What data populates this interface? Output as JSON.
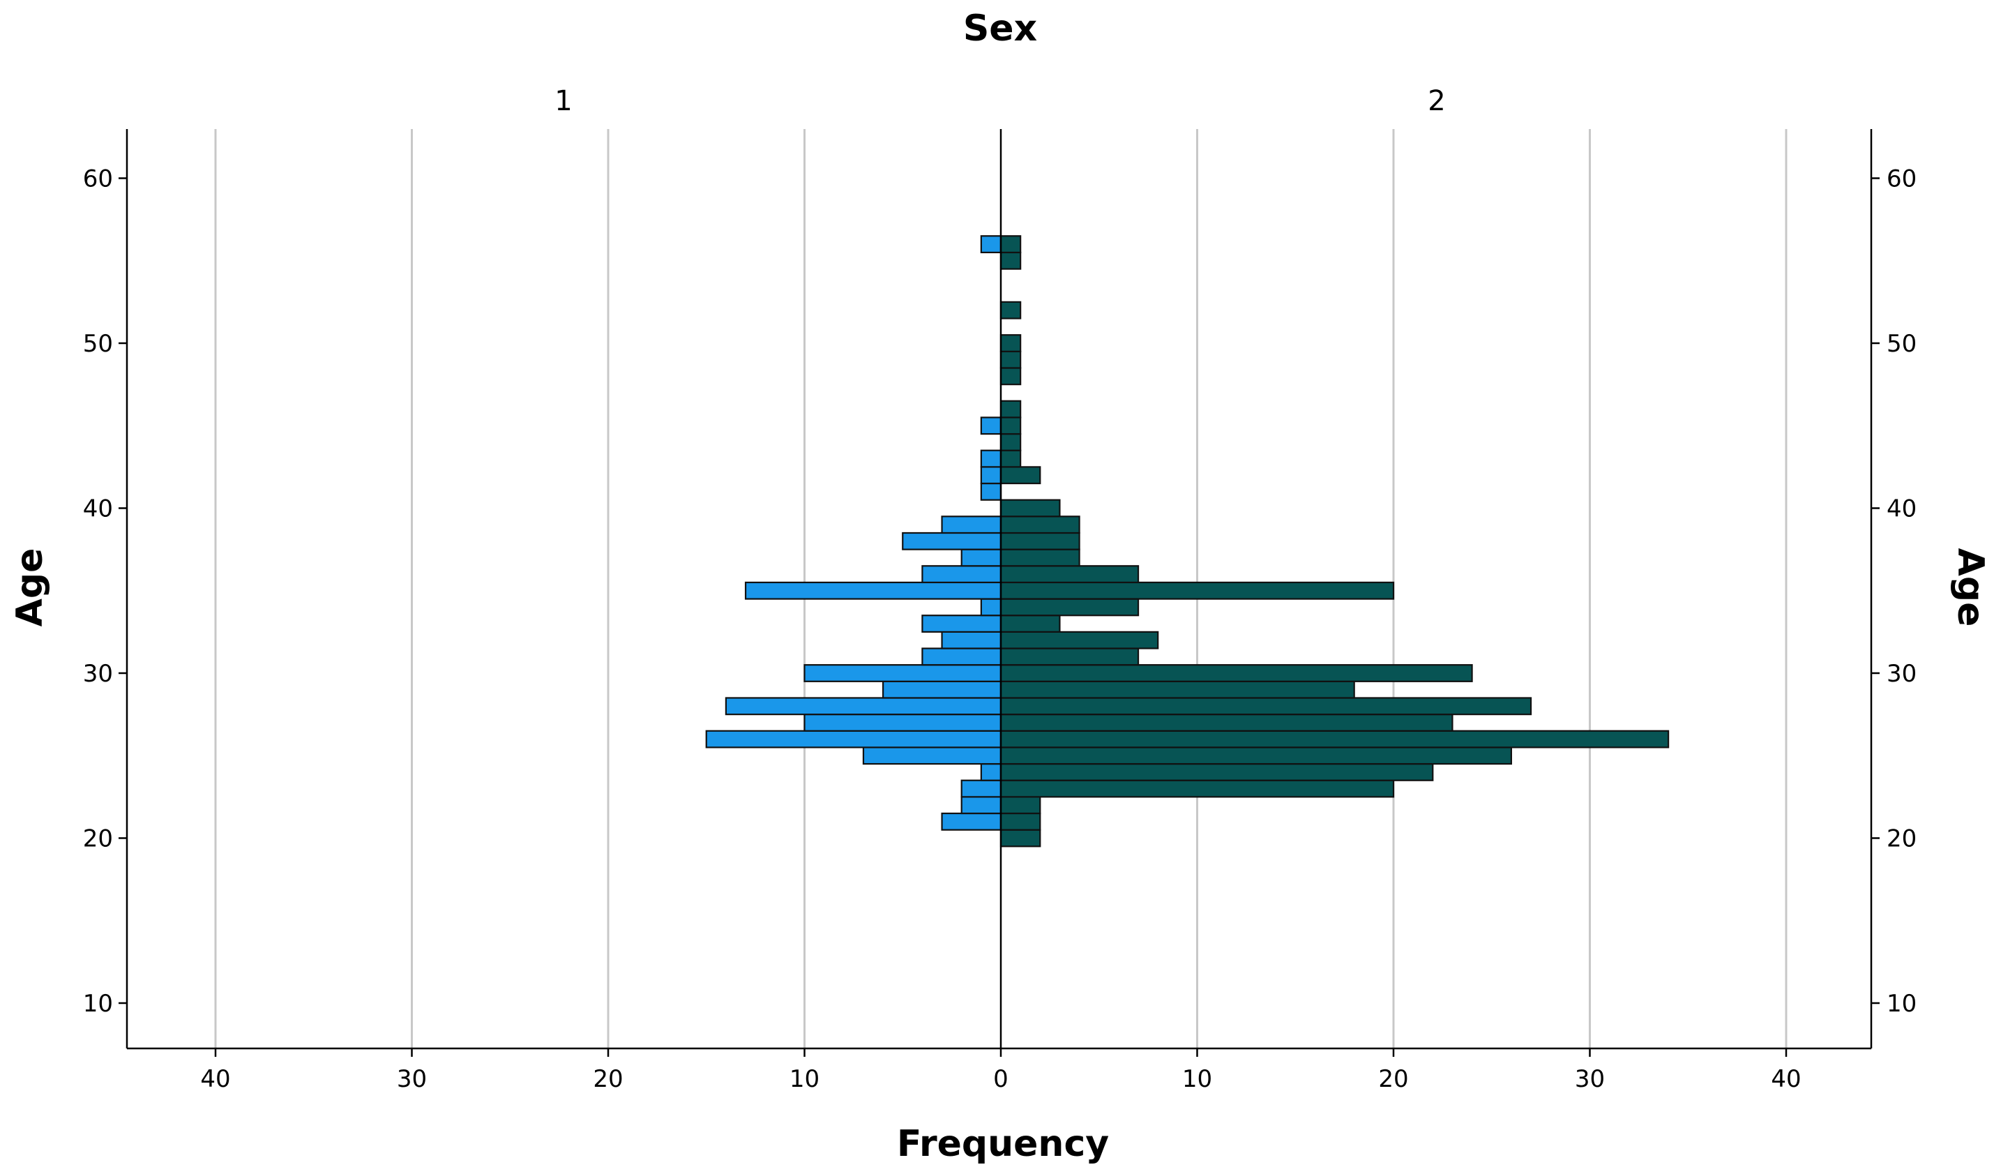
{
  "chart_data": {
    "type": "bar",
    "orientation": "horizontal-population-pyramid",
    "title": "Sex",
    "xlabel": "Frequency",
    "ylabel": "Age",
    "xlim": [
      -45,
      45
    ],
    "ylim": [
      7.5,
      62.7
    ],
    "x_ticks": [
      40,
      30,
      20,
      10,
      0,
      10,
      20,
      30,
      40
    ],
    "x_tick_values": [
      -40,
      -30,
      -20,
      -10,
      0,
      10,
      20,
      30,
      40
    ],
    "y_ticks": [
      10,
      20,
      30,
      40,
      50,
      60
    ],
    "grid": true,
    "panels": [
      "1",
      "2"
    ],
    "series": [
      {
        "name": "1",
        "color": "#1a97ea",
        "bins": [
          {
            "age": 21,
            "count": 3
          },
          {
            "age": 22,
            "count": 2
          },
          {
            "age": 23,
            "count": 2
          },
          {
            "age": 24,
            "count": 1
          },
          {
            "age": 25,
            "count": 7
          },
          {
            "age": 26,
            "count": 15
          },
          {
            "age": 27,
            "count": 10
          },
          {
            "age": 28,
            "count": 14
          },
          {
            "age": 29,
            "count": 6
          },
          {
            "age": 30,
            "count": 10
          },
          {
            "age": 31,
            "count": 4
          },
          {
            "age": 32,
            "count": 3
          },
          {
            "age": 33,
            "count": 4
          },
          {
            "age": 34,
            "count": 1
          },
          {
            "age": 35,
            "count": 13
          },
          {
            "age": 36,
            "count": 4
          },
          {
            "age": 37,
            "count": 2
          },
          {
            "age": 38,
            "count": 5
          },
          {
            "age": 39,
            "count": 3
          },
          {
            "age": 41,
            "count": 1
          },
          {
            "age": 42,
            "count": 1
          },
          {
            "age": 43,
            "count": 1
          },
          {
            "age": 45,
            "count": 1
          },
          {
            "age": 56,
            "count": 1
          }
        ]
      },
      {
        "name": "2",
        "color": "#075454",
        "bins": [
          {
            "age": 20,
            "count": 2
          },
          {
            "age": 21,
            "count": 2
          },
          {
            "age": 22,
            "count": 2
          },
          {
            "age": 23,
            "count": 20
          },
          {
            "age": 24,
            "count": 22
          },
          {
            "age": 25,
            "count": 26
          },
          {
            "age": 26,
            "count": 34
          },
          {
            "age": 27,
            "count": 23
          },
          {
            "age": 28,
            "count": 27
          },
          {
            "age": 29,
            "count": 18
          },
          {
            "age": 30,
            "count": 24
          },
          {
            "age": 31,
            "count": 7
          },
          {
            "age": 32,
            "count": 8
          },
          {
            "age": 33,
            "count": 3
          },
          {
            "age": 34,
            "count": 7
          },
          {
            "age": 35,
            "count": 20
          },
          {
            "age": 36,
            "count": 7
          },
          {
            "age": 37,
            "count": 4
          },
          {
            "age": 38,
            "count": 4
          },
          {
            "age": 39,
            "count": 4
          },
          {
            "age": 40,
            "count": 3
          },
          {
            "age": 42,
            "count": 2
          },
          {
            "age": 43,
            "count": 1
          },
          {
            "age": 44,
            "count": 1
          },
          {
            "age": 45,
            "count": 1
          },
          {
            "age": 46,
            "count": 1
          },
          {
            "age": 48,
            "count": 1
          },
          {
            "age": 49,
            "count": 1
          },
          {
            "age": 50,
            "count": 1
          },
          {
            "age": 52,
            "count": 1
          },
          {
            "age": 55,
            "count": 1
          },
          {
            "age": 56,
            "count": 1
          }
        ]
      }
    ]
  }
}
